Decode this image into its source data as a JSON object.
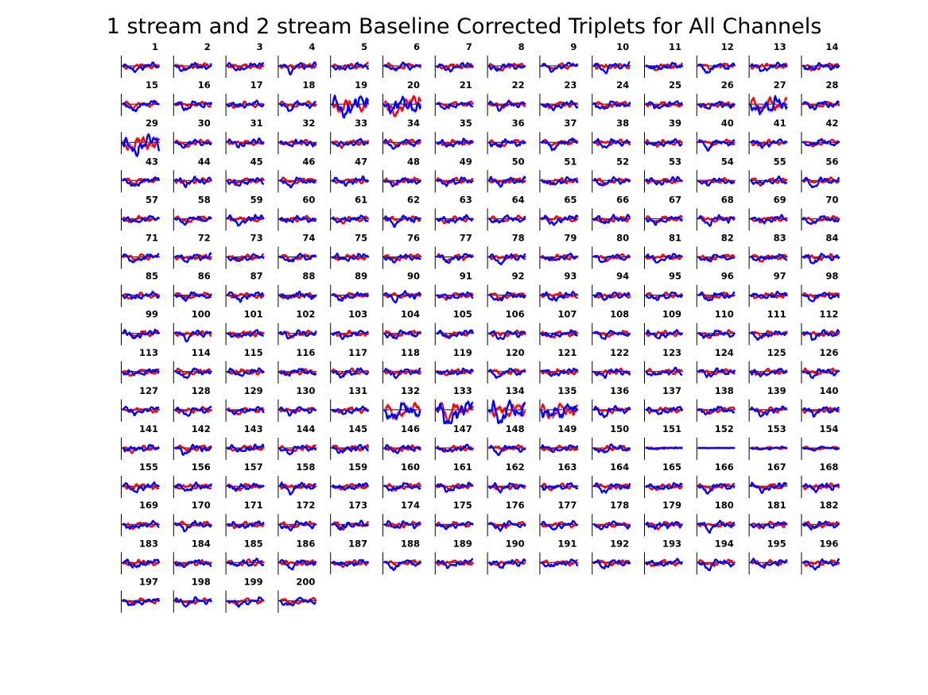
{
  "title": "1 stream and 2 stream Baseline Corrected Triplets for All Channels",
  "colors": {
    "stream1": "#ff0000",
    "stream2": "#0000ff",
    "stream1_band": "#ffb3b3",
    "stream2_band": "#b3b3ff",
    "axis": "#000000",
    "baseline": "#000000"
  },
  "chart_data": {
    "type": "line",
    "layout": "small-multiples grid, 14 columns, 15 rows",
    "panel_count": 200,
    "channel_labels": [
      "1",
      "2",
      "3",
      "4",
      "5",
      "6",
      "7",
      "8",
      "9",
      "10",
      "11",
      "12",
      "13",
      "14",
      "15",
      "16",
      "17",
      "18",
      "19",
      "20",
      "21",
      "22",
      "23",
      "24",
      "25",
      "26",
      "27",
      "28",
      "29",
      "30",
      "31",
      "32",
      "33",
      "34",
      "35",
      "36",
      "37",
      "38",
      "39",
      "40",
      "41",
      "42",
      "43",
      "44",
      "45",
      "46",
      "47",
      "48",
      "49",
      "50",
      "51",
      "52",
      "53",
      "54",
      "55",
      "56",
      "57",
      "58",
      "59",
      "60",
      "61",
      "62",
      "63",
      "64",
      "65",
      "66",
      "67",
      "68",
      "69",
      "70",
      "71",
      "72",
      "73",
      "74",
      "75",
      "76",
      "77",
      "78",
      "79",
      "80",
      "81",
      "82",
      "83",
      "84",
      "85",
      "86",
      "87",
      "88",
      "89",
      "90",
      "91",
      "92",
      "93",
      "94",
      "95",
      "96",
      "97",
      "98",
      "99",
      "100",
      "101",
      "102",
      "103",
      "104",
      "105",
      "106",
      "107",
      "108",
      "109",
      "110",
      "111",
      "112",
      "113",
      "114",
      "115",
      "116",
      "117",
      "118",
      "119",
      "120",
      "121",
      "122",
      "123",
      "124",
      "125",
      "126",
      "127",
      "128",
      "129",
      "130",
      "131",
      "132",
      "133",
      "134",
      "135",
      "136",
      "137",
      "138",
      "139",
      "140",
      "141",
      "142",
      "143",
      "144",
      "145",
      "146",
      "147",
      "148",
      "149",
      "150",
      "151",
      "152",
      "153",
      "154",
      "155",
      "156",
      "157",
      "158",
      "159",
      "160",
      "161",
      "162",
      "163",
      "164",
      "165",
      "166",
      "167",
      "168",
      "169",
      "170",
      "171",
      "172",
      "173",
      "174",
      "175",
      "176",
      "177",
      "178",
      "179",
      "180",
      "181",
      "182",
      "183",
      "184",
      "185",
      "186",
      "187",
      "188",
      "189",
      "190",
      "191",
      "192",
      "193",
      "194",
      "195",
      "196",
      "197",
      "198",
      "199",
      "200"
    ],
    "series_colors": [
      "red",
      "blue"
    ],
    "baseline": "horizontal zero line in each panel",
    "shaded_error_bands": true,
    "axis_ticks": "none",
    "grid": false,
    "legend": "none",
    "note_on_values": "individual waveform amplitudes are not labeled"
  }
}
